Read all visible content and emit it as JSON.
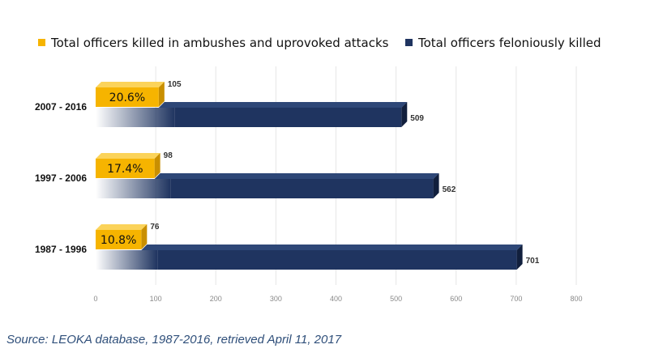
{
  "chart_data": {
    "type": "bar",
    "orientation": "horizontal",
    "categories": [
      "2007 - 2016",
      "1997 - 2006",
      "1987 - 1996"
    ],
    "series": [
      {
        "name": "Total officers killed in ambushes and uprovoked attacks",
        "values": [
          105,
          98,
          76
        ],
        "data_labels": [
          "105",
          "98",
          "76"
        ],
        "percent_labels": [
          "20.6%",
          "17.4%",
          "10.8%"
        ],
        "color": "#f6b400"
      },
      {
        "name": "Total officers feloniously killed",
        "values": [
          509,
          562,
          701
        ],
        "data_labels": [
          "509",
          "562",
          "701"
        ],
        "color": "#1f3460"
      }
    ],
    "x_ticks": [
      "0",
      "100",
      "200",
      "300",
      "400",
      "500",
      "600",
      "700",
      "800"
    ],
    "xlim": [
      0,
      800
    ],
    "grid": true,
    "legend_position": "top"
  },
  "source_text": "Source: LEOKA database, 1987-2016, retrieved April 11, 2017"
}
